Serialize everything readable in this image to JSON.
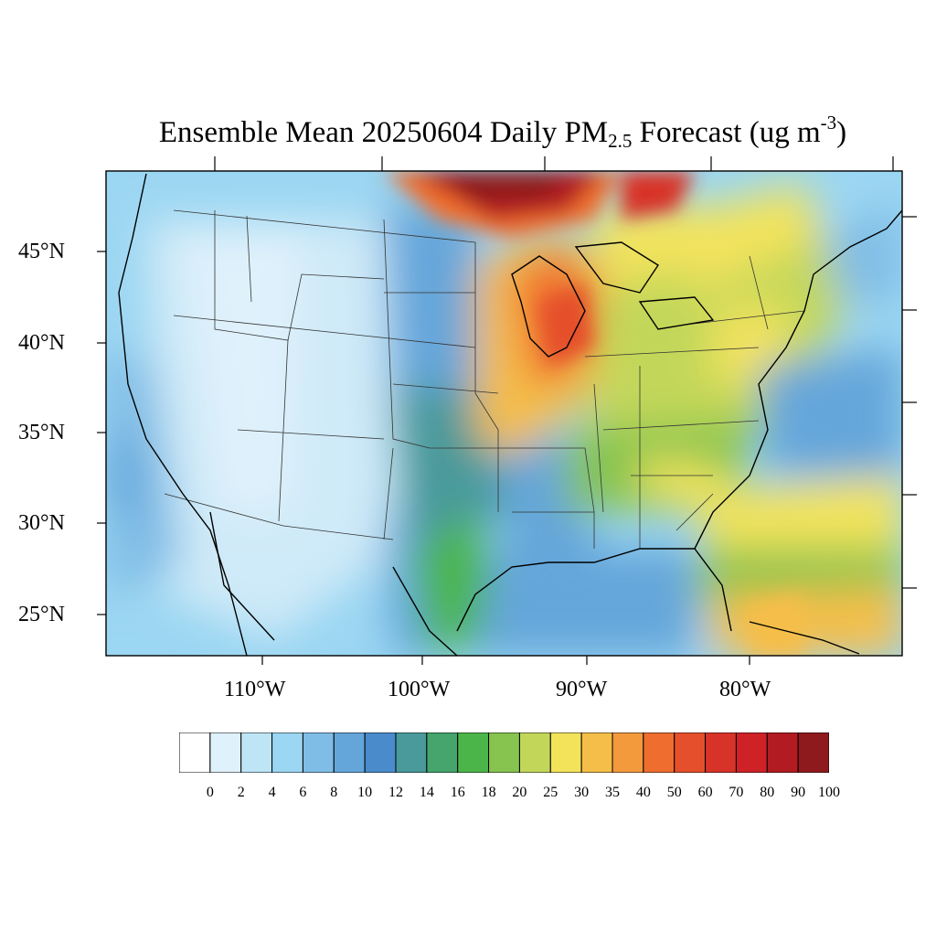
{
  "title": {
    "main": "Ensemble Mean 20250604 Daily PM",
    "sub": "2.5",
    "rest": " Forecast (ug m",
    "sup": "-3",
    "close": ")"
  },
  "map": {
    "lat_labels": [
      "45°N",
      "40°N",
      "35°N",
      "30°N",
      "25°N"
    ],
    "lon_labels": [
      "110°W",
      "100°W",
      "90°W",
      "80°W"
    ],
    "variable": "PM2.5",
    "date": "20250604",
    "units": "ug m-3"
  },
  "colorbar": {
    "labels": [
      "0",
      "2",
      "4",
      "6",
      "8",
      "10",
      "12",
      "14",
      "16",
      "18",
      "20",
      "25",
      "30",
      "35",
      "40",
      "50",
      "60",
      "70",
      "80",
      "90",
      "100"
    ],
    "colors": [
      "#ffffff",
      "#dff1fb",
      "#bde5f6",
      "#9bd6f2",
      "#80bde6",
      "#65a6da",
      "#4a8ccb",
      "#4a9a9b",
      "#45a56d",
      "#4cb54a",
      "#86c44f",
      "#c2d75a",
      "#f3e35b",
      "#f5be48",
      "#f39a3d",
      "#ef6e2f",
      "#e54f2b",
      "#d83328",
      "#cf2227",
      "#b21b21",
      "#8f1a1d"
    ]
  }
}
